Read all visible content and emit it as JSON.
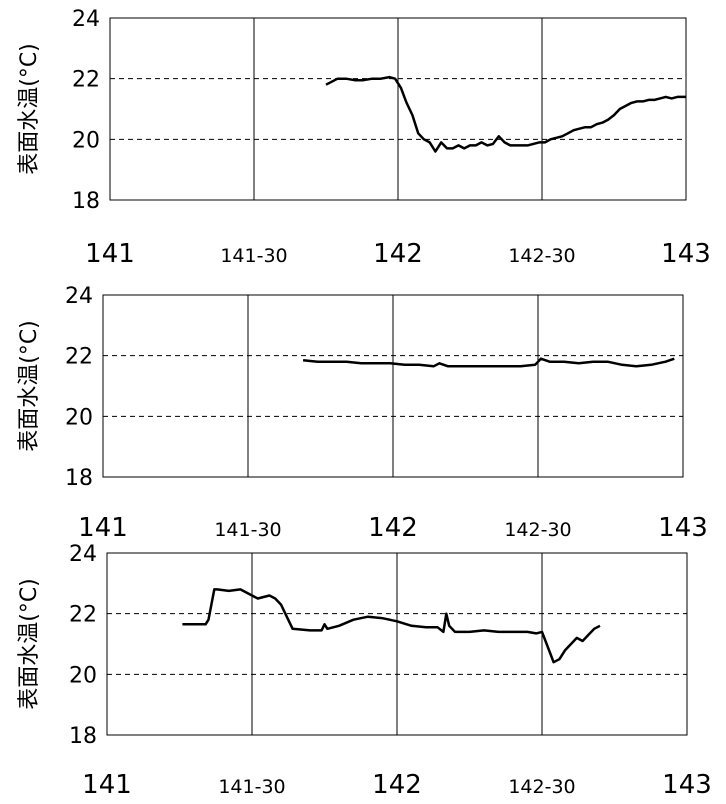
{
  "chart_data": [
    {
      "type": "line",
      "ylabel": "表面水温(°C)",
      "ylim": [
        18,
        24
      ],
      "yticks": [
        "24",
        "22",
        "20",
        "18"
      ],
      "xlim": [
        141.0,
        143.0
      ],
      "xticks": [
        {
          "x": 141.0,
          "label": "141",
          "size": "large"
        },
        {
          "x": 141.5,
          "label": "141-30",
          "size": "small"
        },
        {
          "x": 142.0,
          "label": "142",
          "size": "large"
        },
        {
          "x": 142.5,
          "label": "142-30",
          "size": "small"
        },
        {
          "x": 143.0,
          "label": "143",
          "size": "large"
        }
      ],
      "grid": "dashed horizontal, solid vertical",
      "series": [
        {
          "x": [
            141.75,
            141.77,
            141.79,
            141.82,
            141.85,
            141.88,
            141.91,
            141.94,
            141.97,
            141.99,
            142.01,
            142.03,
            142.05,
            142.07,
            142.09,
            142.11,
            142.13,
            142.15,
            142.17,
            142.19,
            142.21,
            142.23,
            142.25,
            142.27,
            142.29,
            142.31,
            142.33,
            142.35,
            142.37,
            142.39,
            142.41,
            142.43,
            142.45,
            142.47,
            142.49,
            142.51,
            142.53,
            142.55,
            142.57,
            142.59,
            142.61,
            142.63,
            142.65,
            142.67,
            142.69,
            142.71,
            142.73,
            142.75,
            142.77,
            142.79,
            142.81,
            142.83,
            142.85,
            142.87,
            142.89,
            142.91,
            142.93,
            142.95,
            142.97,
            142.99,
            143.0
          ],
          "y": [
            21.8,
            21.9,
            22.0,
            22.0,
            21.95,
            21.95,
            22.0,
            22.0,
            22.05,
            22.0,
            21.7,
            21.2,
            20.8,
            20.2,
            20.0,
            19.9,
            19.6,
            19.9,
            19.7,
            19.7,
            19.8,
            19.7,
            19.8,
            19.8,
            19.9,
            19.8,
            19.85,
            20.1,
            19.9,
            19.8,
            19.8,
            19.8,
            19.8,
            19.85,
            19.9,
            19.9,
            20.0,
            20.05,
            20.1,
            20.2,
            20.3,
            20.35,
            20.4,
            20.4,
            20.5,
            20.55,
            20.65,
            20.8,
            21.0,
            21.1,
            21.2,
            21.25,
            21.25,
            21.3,
            21.3,
            21.35,
            21.4,
            21.35,
            21.4,
            21.4,
            21.4
          ]
        }
      ]
    },
    {
      "type": "line",
      "ylabel": "表面水温(°C)",
      "ylim": [
        18,
        24
      ],
      "yticks": [
        "24",
        "22",
        "20",
        "18"
      ],
      "xlim": [
        141.0,
        143.0
      ],
      "xticks": [
        {
          "x": 141.0,
          "label": "141",
          "size": "large"
        },
        {
          "x": 141.5,
          "label": "141-30",
          "size": "small"
        },
        {
          "x": 142.0,
          "label": "142",
          "size": "large"
        },
        {
          "x": 142.5,
          "label": "142-30",
          "size": "small"
        },
        {
          "x": 143.0,
          "label": "143",
          "size": "large"
        }
      ],
      "grid": "dashed horizontal, solid vertical",
      "series": [
        {
          "x": [
            141.69,
            141.74,
            141.79,
            141.84,
            141.89,
            141.94,
            141.99,
            142.04,
            142.09,
            142.14,
            142.16,
            142.19,
            142.24,
            142.29,
            142.34,
            142.39,
            142.44,
            142.49,
            142.51,
            142.54,
            142.59,
            142.64,
            142.69,
            142.74,
            142.79,
            142.84,
            142.89,
            142.94,
            142.97
          ],
          "y": [
            21.85,
            21.8,
            21.8,
            21.8,
            21.75,
            21.75,
            21.75,
            21.7,
            21.7,
            21.65,
            21.75,
            21.65,
            21.65,
            21.65,
            21.65,
            21.65,
            21.65,
            21.7,
            21.9,
            21.8,
            21.8,
            21.75,
            21.8,
            21.8,
            21.7,
            21.65,
            21.7,
            21.8,
            21.9
          ]
        }
      ]
    },
    {
      "type": "line",
      "ylabel": "表面水温(°C)",
      "ylim": [
        18,
        24
      ],
      "yticks": [
        "24",
        "22",
        "20",
        "18"
      ],
      "xlim": [
        141.0,
        143.0
      ],
      "xticks": [
        {
          "x": 141.0,
          "label": "141",
          "size": "large"
        },
        {
          "x": 141.5,
          "label": "141-30",
          "size": "small"
        },
        {
          "x": 142.0,
          "label": "142",
          "size": "large"
        },
        {
          "x": 142.5,
          "label": "142-30",
          "size": "small"
        },
        {
          "x": 143.0,
          "label": "143",
          "size": "large"
        }
      ],
      "grid": "dashed horizontal, solid vertical",
      "series": [
        {
          "x": [
            141.26,
            141.3,
            141.34,
            141.35,
            141.37,
            141.38,
            141.42,
            141.46,
            141.5,
            141.52,
            141.56,
            141.58,
            141.6,
            141.64,
            141.7,
            141.74,
            141.75,
            141.76,
            141.8,
            141.85,
            141.9,
            141.95,
            142.0,
            142.05,
            142.1,
            142.14,
            142.16,
            142.17,
            142.18,
            142.2,
            142.25,
            142.3,
            142.35,
            142.4,
            142.45,
            142.48,
            142.5,
            142.52,
            142.54,
            142.56,
            142.58,
            142.6,
            142.62,
            142.64,
            142.66,
            142.68,
            142.7
          ],
          "y": [
            21.65,
            21.65,
            21.65,
            21.8,
            22.8,
            22.8,
            22.75,
            22.8,
            22.6,
            22.5,
            22.6,
            22.5,
            22.3,
            21.5,
            21.45,
            21.45,
            21.65,
            21.5,
            21.6,
            21.8,
            21.9,
            21.85,
            21.75,
            21.6,
            21.55,
            21.55,
            21.4,
            22.0,
            21.6,
            21.4,
            21.4,
            21.45,
            21.4,
            21.4,
            21.4,
            21.35,
            21.4,
            20.9,
            20.4,
            20.5,
            20.8,
            21.0,
            21.2,
            21.1,
            21.3,
            21.5,
            21.6
          ]
        }
      ]
    }
  ]
}
